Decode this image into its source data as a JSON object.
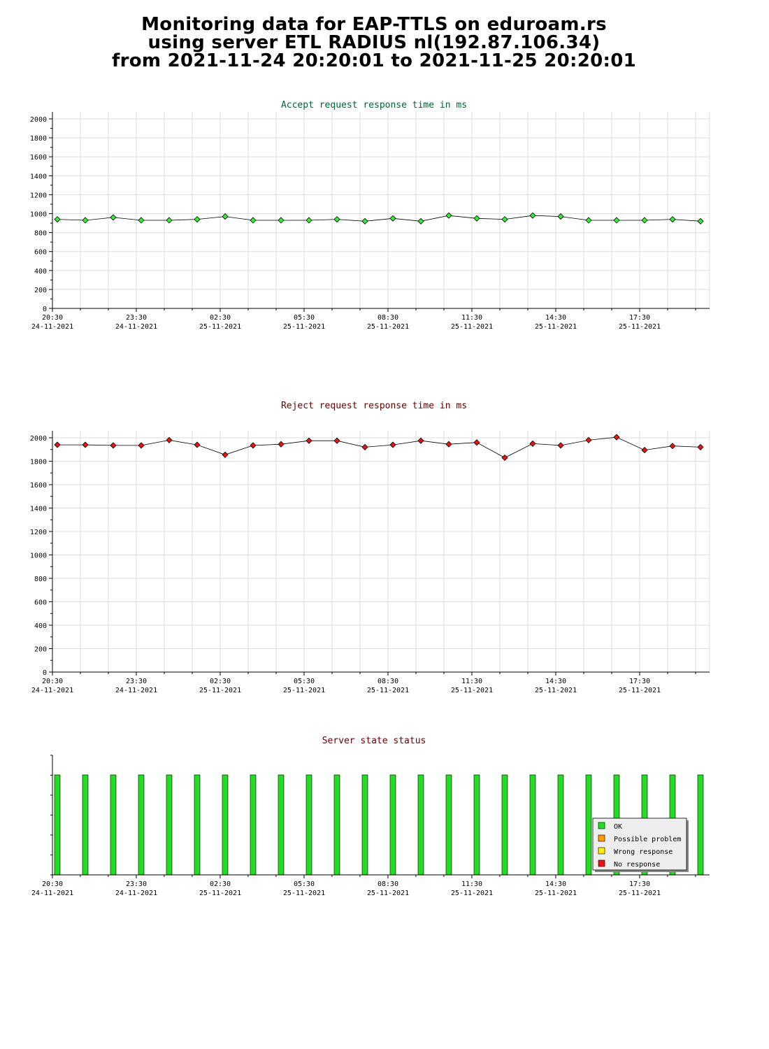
{
  "header": {
    "line1": "Monitoring data for EAP-TTLS on eduroam.rs",
    "line2": "using server ETL RADIUS nl(192.87.106.34)",
    "line3": "from 2021-11-24 20:20:01 to 2021-11-25 20:20:01"
  },
  "colors": {
    "accept_title": "#006633",
    "reject_title": "#660000",
    "status_title": "#660000",
    "accept_marker": "#33ee33",
    "reject_marker": "#ee1111",
    "ok": "#22dd22",
    "possible_problem": "#ff9900",
    "wrong_response": "#ffee00",
    "no_response": "#ee1111"
  },
  "x_axis_labels": [
    {
      "time": "20:30",
      "date": "24-11-2021"
    },
    {
      "time": "23:30",
      "date": "24-11-2021"
    },
    {
      "time": "02:30",
      "date": "25-11-2021"
    },
    {
      "time": "05:30",
      "date": "25-11-2021"
    },
    {
      "time": "08:30",
      "date": "25-11-2021"
    },
    {
      "time": "11:30",
      "date": "25-11-2021"
    },
    {
      "time": "14:30",
      "date": "25-11-2021"
    },
    {
      "time": "17:30",
      "date": "25-11-2021"
    }
  ],
  "chart_data": [
    {
      "type": "line",
      "title": "Accept request response time in ms",
      "ylim": [
        0,
        2000
      ],
      "yticks": [
        "0",
        "200",
        "400",
        "600",
        "800",
        "1000",
        "1200",
        "1400",
        "1600",
        "1800",
        "2000"
      ],
      "x": [
        "20:30",
        "21:30",
        "22:30",
        "23:30",
        "00:30",
        "01:30",
        "02:30",
        "03:30",
        "04:30",
        "05:30",
        "06:30",
        "07:30",
        "08:30",
        "09:30",
        "10:30",
        "11:30",
        "12:30",
        "13:30",
        "14:30",
        "15:30",
        "16:30",
        "17:30",
        "18:30",
        "19:30"
      ],
      "values": [
        940,
        930,
        960,
        930,
        930,
        940,
        970,
        930,
        930,
        930,
        940,
        920,
        950,
        920,
        980,
        950,
        940,
        980,
        970,
        930,
        930,
        930,
        940,
        920
      ],
      "grid": true
    },
    {
      "type": "line",
      "title": "Reject request response time in ms",
      "ylim": [
        0,
        2000
      ],
      "yticks": [
        "0",
        "200",
        "400",
        "600",
        "800",
        "1000",
        "1200",
        "1400",
        "1600",
        "1800",
        "2000"
      ],
      "x": [
        "20:30",
        "21:30",
        "22:30",
        "23:30",
        "00:30",
        "01:30",
        "02:30",
        "03:30",
        "04:30",
        "05:30",
        "06:30",
        "07:30",
        "08:30",
        "09:30",
        "10:30",
        "11:30",
        "12:30",
        "13:30",
        "14:30",
        "15:30",
        "16:30",
        "17:30",
        "18:30",
        "19:30"
      ],
      "values": [
        1940,
        1940,
        1935,
        1935,
        1980,
        1940,
        1855,
        1935,
        1945,
        1975,
        1975,
        1920,
        1940,
        1975,
        1945,
        1960,
        1830,
        1950,
        1935,
        1980,
        2005,
        1895,
        1930,
        1920
      ],
      "grid": true
    },
    {
      "type": "bar",
      "title": "Server state status",
      "x": [
        "20:30",
        "21:30",
        "22:30",
        "23:30",
        "00:30",
        "01:30",
        "02:30",
        "03:30",
        "04:30",
        "05:30",
        "06:30",
        "07:30",
        "08:30",
        "09:30",
        "10:30",
        "11:30",
        "12:30",
        "13:30",
        "14:30",
        "15:30",
        "16:30",
        "17:30",
        "18:30",
        "19:30"
      ],
      "values": [
        "OK",
        "OK",
        "OK",
        "OK",
        "OK",
        "OK",
        "OK",
        "OK",
        "OK",
        "OK",
        "OK",
        "OK",
        "OK",
        "OK",
        "OK",
        "OK",
        "OK",
        "OK",
        "OK",
        "OK",
        "OK",
        "OK",
        "OK",
        "OK"
      ],
      "legend": [
        "OK",
        "Possible problem",
        "Wrong response",
        "No response"
      ],
      "legend_position": "bottom-right"
    }
  ]
}
